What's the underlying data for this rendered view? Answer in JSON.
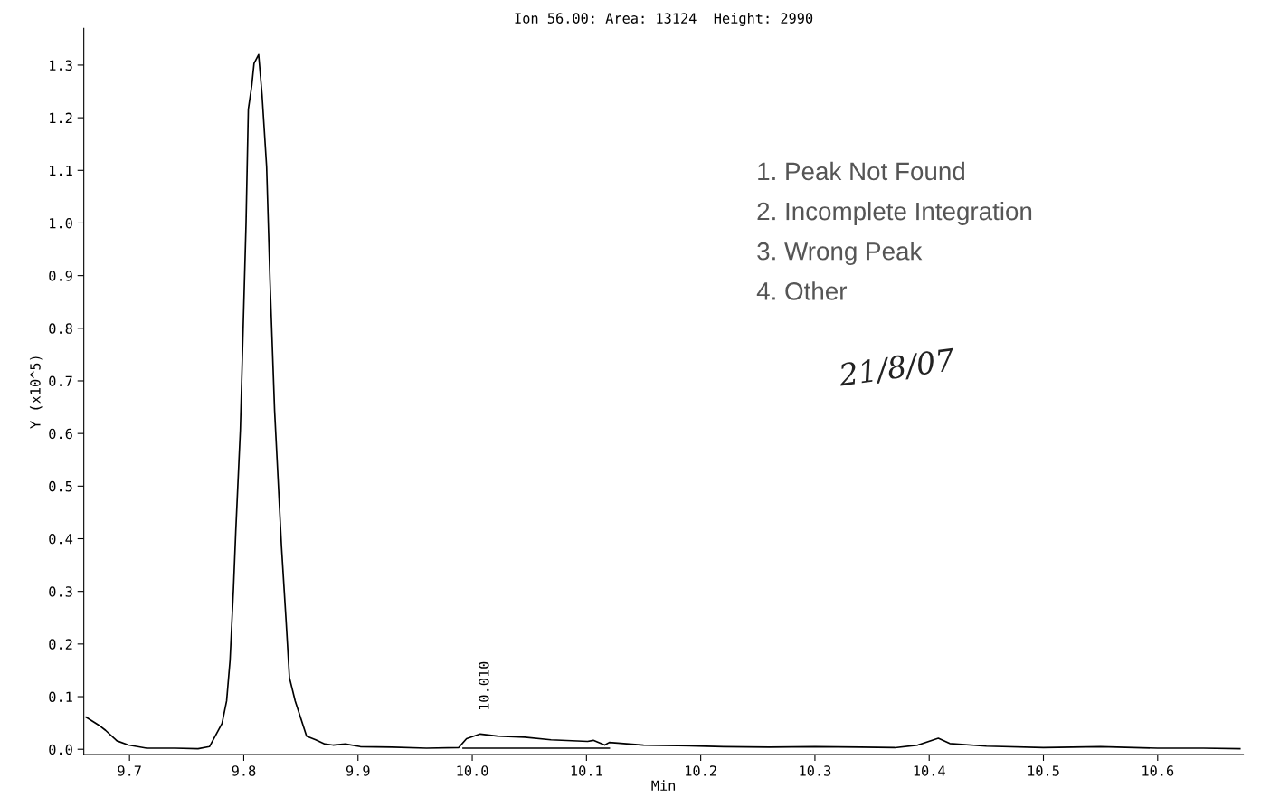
{
  "chart_data": {
    "type": "line",
    "title": "Ion 56.00: Area: 13124  Height: 2990",
    "xlabel": "Min",
    "ylabel": "Y (x10^5)",
    "xlim": [
      9.66,
      10.675
    ],
    "ylim": [
      -0.01,
      1.37
    ],
    "xticks": [
      9.7,
      9.8,
      9.9,
      {
        "value": 10.0,
        "label": "10.0"
      },
      10.1,
      10.2,
      10.3,
      10.4,
      10.5,
      10.6
    ],
    "yticks": [
      {
        "value": 0,
        "label": "0.0"
      },
      0.1,
      0.2,
      0.3,
      0.4,
      0.5,
      0.6,
      0.7,
      0.8,
      0.9,
      {
        "value": 1.0,
        "label": "1.0"
      },
      1.1,
      1.2,
      1.3
    ],
    "grid": false,
    "marker": "none",
    "line_style": "solid",
    "series": [
      {
        "color": "#000000",
        "x": [
          9.662,
          9.673,
          9.679,
          9.689,
          9.699,
          9.715,
          9.74,
          9.76,
          9.77,
          9.781,
          9.785,
          9.788,
          9.791,
          9.793,
          9.797,
          9.802,
          9.804,
          9.807,
          9.809,
          9.813,
          9.816,
          9.82,
          9.823,
          9.827,
          9.833,
          9.837,
          9.84,
          9.845,
          9.855,
          9.863,
          9.871,
          9.878,
          9.889,
          9.902,
          9.93,
          9.96,
          9.988,
          9.995,
          10.007,
          10.022,
          10.046,
          10.069,
          10.101,
          10.106,
          10.116,
          10.12,
          10.15,
          10.18,
          10.22,
          10.26,
          10.3,
          10.34,
          10.37,
          10.39,
          10.408,
          10.418,
          10.45,
          10.5,
          10.55,
          10.6,
          10.64,
          10.672
        ],
        "values": [
          0.061,
          0.046,
          0.036,
          0.016,
          0.008,
          0.002,
          0.002,
          0.001,
          0.005,
          0.049,
          0.092,
          0.169,
          0.305,
          0.414,
          0.606,
          0.999,
          1.216,
          1.261,
          1.303,
          1.32,
          1.244,
          1.107,
          0.889,
          0.643,
          0.386,
          0.246,
          0.136,
          0.092,
          0.025,
          0.018,
          0.01,
          0.008,
          0.01,
          0.005,
          0.004,
          0.002,
          0.003,
          0.02,
          0.029,
          0.025,
          0.023,
          0.018,
          0.015,
          0.017,
          0.008,
          0.013,
          0.008,
          0.007,
          0.005,
          0.004,
          0.005,
          0.004,
          0.003,
          0.008,
          0.021,
          0.011,
          0.006,
          0.003,
          0.005,
          0.002,
          0.002,
          0.001
        ]
      },
      {
        "color": "#000000",
        "x": [
          9.992,
          10.12
        ],
        "values": [
          0.002,
          0.002
        ]
      }
    ],
    "annotations": [
      "10.010",
      "1. Peak Not Found",
      "2. Incomplete Integration",
      "3. Wrong Peak",
      "4. Other",
      "21/8/07"
    ]
  }
}
